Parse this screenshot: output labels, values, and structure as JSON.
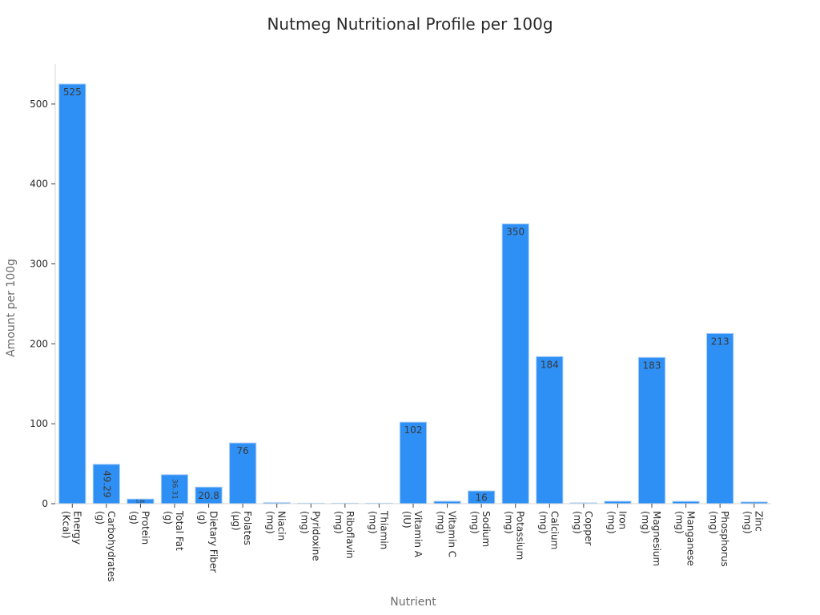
{
  "chart_data": {
    "type": "bar",
    "title": "Nutmeg Nutritional Profile per 100g",
    "xlabel": "Nutrient",
    "ylabel": "Amount per 100g",
    "ylim": [
      0,
      550
    ],
    "yticks": [
      0,
      100,
      200,
      300,
      400,
      500
    ],
    "grid": false,
    "bar_color": "#2e90f5",
    "bar_edge_color": "#a9cef6",
    "categories": [
      "Energy (Kcal)",
      "Carbohydrates (g)",
      "Protein (g)",
      "Total Fat (g)",
      "Dietary Fiber (g)",
      "Folates (µg)",
      "Niacin (mg)",
      "Pyridoxine (mg)",
      "Riboflavin (mg)",
      "Thiamin (mg)",
      "Vitamin A (IU)",
      "Vitamin C (mg)",
      "Sodium (mg)",
      "Potassium (mg)",
      "Calcium (mg)",
      "Copper (mg)",
      "Iron (mg)",
      "Magnesium (mg)",
      "Manganese (mg)",
      "Phosphorus (mg)",
      "Zinc (mg)"
    ],
    "values": [
      525,
      49.29,
      5.84,
      36.31,
      20.8,
      76,
      1.299,
      0.16,
      0.057,
      0.346,
      102,
      3,
      16,
      350,
      184,
      1.027,
      3.04,
      183,
      2.9,
      213,
      2.15
    ],
    "data_labels": [
      "525",
      "49.29",
      "5.84",
      "36.31",
      "20.8",
      "76",
      "",
      "",
      "",
      "",
      "102",
      "",
      "16",
      "350",
      "184",
      "",
      "",
      "183",
      "",
      "213",
      ""
    ]
  }
}
